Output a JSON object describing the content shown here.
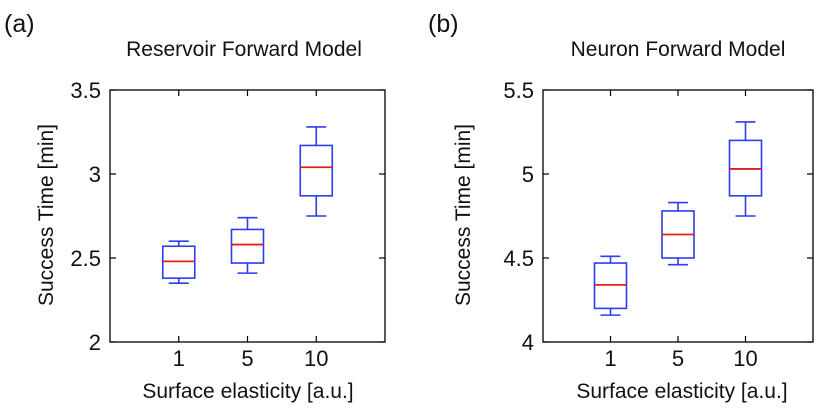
{
  "chart_data": [
    {
      "type": "box",
      "panel_label": "(a)",
      "title": "Reservoir Forward Model",
      "xlabel": "Surface elasticity [a.u.]",
      "ylabel": "Success Time [min]",
      "categories": [
        "1",
        "5",
        "10"
      ],
      "ylim": [
        2,
        3.5
      ],
      "yticks": [
        "2",
        "2.5",
        "3",
        "3.5"
      ],
      "boxes": [
        {
          "whisker_low": 2.35,
          "q1": 2.38,
          "median": 2.48,
          "q3": 2.57,
          "whisker_high": 2.6
        },
        {
          "whisker_low": 2.41,
          "q1": 2.47,
          "median": 2.58,
          "q3": 2.67,
          "whisker_high": 2.74
        },
        {
          "whisker_low": 2.75,
          "q1": 2.87,
          "median": 3.04,
          "q3": 3.17,
          "whisker_high": 3.28
        }
      ],
      "grid": false
    },
    {
      "type": "box",
      "panel_label": "(b)",
      "title": "Neuron Forward Model",
      "xlabel": "Surface elasticity [a.u.]",
      "ylabel": "Success Time [min]",
      "categories": [
        "1",
        "5",
        "10"
      ],
      "ylim": [
        4,
        5.5
      ],
      "yticks": [
        "4",
        "4.5",
        "5",
        "5.5"
      ],
      "boxes": [
        {
          "whisker_low": 4.16,
          "q1": 4.2,
          "median": 4.34,
          "q3": 4.47,
          "whisker_high": 4.51
        },
        {
          "whisker_low": 4.46,
          "q1": 4.5,
          "median": 4.64,
          "q3": 4.78,
          "whisker_high": 4.83
        },
        {
          "whisker_low": 4.75,
          "q1": 4.87,
          "median": 5.03,
          "q3": 5.2,
          "whisker_high": 5.31
        }
      ],
      "grid": false
    }
  ],
  "colors": {
    "box": "#2b3df0",
    "median": "#e0201c",
    "axis": "#000000",
    "text": "#111111"
  }
}
